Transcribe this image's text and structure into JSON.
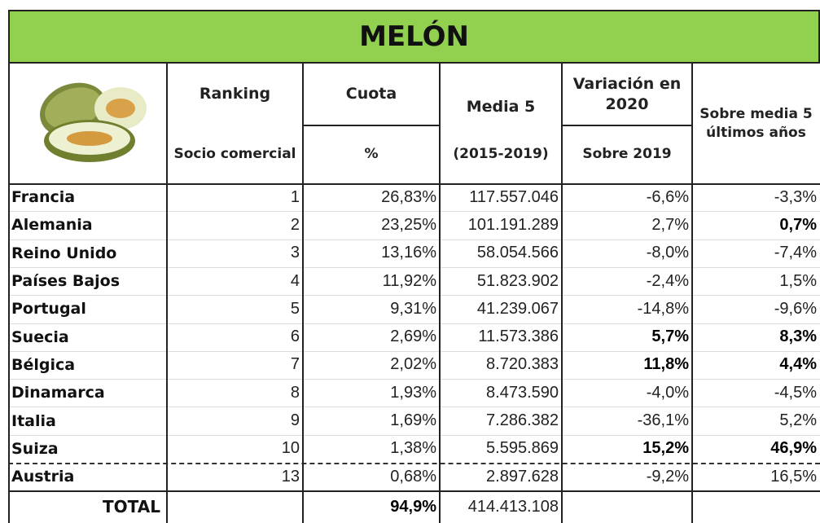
{
  "title": "MELÓN",
  "header": {
    "top": [
      "Ranking",
      "Cuota",
      "Media 5",
      "Variación en 2020",
      "Sobre media 5 últimos años"
    ],
    "bottom": [
      "Socio comercial",
      "%",
      "(2015-2019)",
      "Sobre 2019"
    ]
  },
  "rows": [
    {
      "cells": [
        "Francia",
        "1",
        "26,83%",
        "117.557.046",
        "-6,6%",
        "-3,3%"
      ],
      "bold": []
    },
    {
      "cells": [
        "Alemania",
        "2",
        "23,25%",
        "101.191.289",
        "2,7%",
        "0,7%"
      ],
      "bold": [
        5
      ]
    },
    {
      "cells": [
        "Reino Unido",
        "3",
        "13,16%",
        "58.054.566",
        "-8,0%",
        "-7,4%"
      ],
      "bold": []
    },
    {
      "cells": [
        "Países Bajos",
        "4",
        "11,92%",
        "51.823.902",
        "-2,4%",
        "1,5%"
      ],
      "bold": []
    },
    {
      "cells": [
        "Portugal",
        "5",
        "9,31%",
        "41.239.067",
        "-14,8%",
        "-9,6%"
      ],
      "bold": []
    },
    {
      "cells": [
        "Suecia",
        "6",
        "2,69%",
        "11.573.386",
        "5,7%",
        "8,3%"
      ],
      "bold": [
        4,
        5
      ]
    },
    {
      "cells": [
        "Bélgica",
        "7",
        "2,02%",
        "8.720.383",
        "11,8%",
        "4,4%"
      ],
      "bold": [
        4,
        5
      ]
    },
    {
      "cells": [
        "Dinamarca",
        "8",
        "1,93%",
        "8.473.590",
        "-4,0%",
        "-4,5%"
      ],
      "bold": []
    },
    {
      "cells": [
        "Italia",
        "9",
        "1,69%",
        "7.286.382",
        "-36,1%",
        "5,2%"
      ],
      "bold": []
    },
    {
      "cells": [
        "Suiza",
        "10",
        "1,38%",
        "5.595.869",
        "15,2%",
        "46,9%"
      ],
      "bold": [
        4,
        5
      ]
    },
    {
      "cells": [
        "Austria",
        "13",
        "0,68%",
        "2.897.628",
        "-9,2%",
        "16,5%"
      ],
      "bold": []
    }
  ],
  "total": {
    "label": "TOTAL",
    "cuota": "94,9%",
    "media": "414.413.108"
  }
}
